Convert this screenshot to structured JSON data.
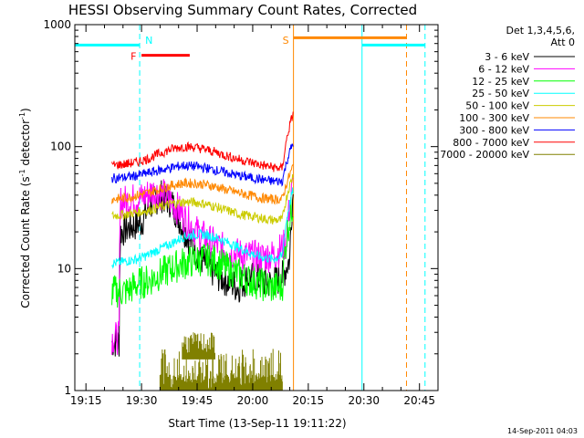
{
  "chart_data": {
    "type": "line",
    "title": "HESSI Observing Summary Count Rates, Corrected",
    "xlabel": "Start Time (13-Sep-11 19:11:22)",
    "ylabel_main": "Corrected Count Rate (s",
    "ylabel_sup1": "-1",
    "ylabel_mid": " detector",
    "ylabel_sup2": "-1",
    "ylabel_end": ")",
    "xaxis": {
      "unit": "minutes of day",
      "range": [
        1152,
        1250
      ],
      "ticks": [
        1155,
        1170,
        1185,
        1200,
        1215,
        1230,
        1245
      ],
      "tick_labels": [
        "19:15",
        "19:30",
        "19:45",
        "20:00",
        "20:15",
        "20:30",
        "20:45"
      ]
    },
    "yaxis": {
      "scale": "log",
      "range": [
        1,
        1000
      ],
      "ticks": [
        1,
        10,
        100,
        1000
      ],
      "tick_labels": [
        "1",
        "10",
        "100",
        "1000"
      ]
    },
    "legend": {
      "header1": "Det 1,3,4,5,6,",
      "header2": "Att 0",
      "placement": "right"
    },
    "series": [
      {
        "name": "3 - 6 keV",
        "color": "#000000",
        "points": [
          [
            1162,
            2.5
          ],
          [
            1164,
            2.5
          ],
          [
            1164.3,
            20
          ],
          [
            1170,
            24
          ],
          [
            1172,
            32
          ],
          [
            1175,
            40
          ],
          [
            1178,
            35
          ],
          [
            1181,
            22
          ],
          [
            1184,
            15
          ],
          [
            1187,
            11
          ],
          [
            1190,
            9
          ],
          [
            1193,
            8
          ],
          [
            1196,
            7
          ],
          [
            1199,
            8.5
          ],
          [
            1202,
            8
          ],
          [
            1205,
            7.5
          ],
          [
            1208,
            8.5
          ],
          [
            1210,
            12
          ],
          [
            1211,
            45
          ]
        ]
      },
      {
        "name": "6 - 12 keV",
        "color": "#ff00ff",
        "points": [
          [
            1162,
            2.7
          ],
          [
            1164,
            2.7
          ],
          [
            1164.3,
            35
          ],
          [
            1170,
            38
          ],
          [
            1173,
            43
          ],
          [
            1176,
            40
          ],
          [
            1179,
            33
          ],
          [
            1182,
            25
          ],
          [
            1185,
            20
          ],
          [
            1188,
            17
          ],
          [
            1191,
            15
          ],
          [
            1194,
            13.5
          ],
          [
            1197,
            13
          ],
          [
            1200,
            12.5
          ],
          [
            1203,
            12.5
          ],
          [
            1206,
            13
          ],
          [
            1209,
            16
          ],
          [
            1211,
            50
          ]
        ]
      },
      {
        "name": "12 - 25 keV",
        "color": "#00ff00",
        "points": [
          [
            1162,
            6.5
          ],
          [
            1166,
            6.5
          ],
          [
            1169,
            7.5
          ],
          [
            1172,
            8
          ],
          [
            1175,
            9
          ],
          [
            1178,
            10
          ],
          [
            1181,
            11
          ],
          [
            1184,
            11.5
          ],
          [
            1187,
            12
          ],
          [
            1190,
            11.5
          ],
          [
            1193,
            10
          ],
          [
            1196,
            9
          ],
          [
            1199,
            8
          ],
          [
            1202,
            7.5
          ],
          [
            1205,
            7
          ],
          [
            1208,
            7
          ],
          [
            1211,
            35
          ]
        ]
      },
      {
        "name": "25 - 50 keV",
        "color": "#00ffff",
        "points": [
          [
            1162,
            11
          ],
          [
            1166,
            11.5
          ],
          [
            1169,
            12
          ],
          [
            1172,
            13
          ],
          [
            1175,
            14.5
          ],
          [
            1178,
            16
          ],
          [
            1181,
            18
          ],
          [
            1184,
            19
          ],
          [
            1187,
            19
          ],
          [
            1190,
            18
          ],
          [
            1193,
            16.5
          ],
          [
            1196,
            15
          ],
          [
            1199,
            13.5
          ],
          [
            1202,
            12.5
          ],
          [
            1205,
            12
          ],
          [
            1208,
            12.5
          ],
          [
            1211,
            45
          ]
        ]
      },
      {
        "name": "50 - 100 keV",
        "color": "#cccc00",
        "points": [
          [
            1162,
            27
          ],
          [
            1166,
            28
          ],
          [
            1169,
            29
          ],
          [
            1172,
            30
          ],
          [
            1175,
            32
          ],
          [
            1178,
            34
          ],
          [
            1181,
            35
          ],
          [
            1184,
            35
          ],
          [
            1187,
            34
          ],
          [
            1190,
            32
          ],
          [
            1193,
            30
          ],
          [
            1196,
            28
          ],
          [
            1199,
            27
          ],
          [
            1202,
            26
          ],
          [
            1205,
            25
          ],
          [
            1208,
            25
          ],
          [
            1211,
            60
          ]
        ]
      },
      {
        "name": "100 - 300 keV",
        "color": "#ff8800",
        "points": [
          [
            1162,
            37
          ],
          [
            1166,
            38
          ],
          [
            1169,
            40
          ],
          [
            1172,
            42
          ],
          [
            1175,
            45
          ],
          [
            1178,
            48
          ],
          [
            1181,
            50
          ],
          [
            1184,
            50
          ],
          [
            1187,
            49
          ],
          [
            1190,
            47
          ],
          [
            1193,
            44
          ],
          [
            1196,
            42
          ],
          [
            1199,
            40
          ],
          [
            1202,
            38
          ],
          [
            1205,
            37
          ],
          [
            1208,
            37
          ],
          [
            1211,
            70
          ]
        ]
      },
      {
        "name": "300 - 800 keV",
        "color": "#0000ff",
        "points": [
          [
            1162,
            55
          ],
          [
            1166,
            56
          ],
          [
            1169,
            58
          ],
          [
            1172,
            61
          ],
          [
            1175,
            64
          ],
          [
            1178,
            67
          ],
          [
            1181,
            70
          ],
          [
            1184,
            69
          ],
          [
            1187,
            67
          ],
          [
            1190,
            64
          ],
          [
            1193,
            61
          ],
          [
            1196,
            58
          ],
          [
            1199,
            56
          ],
          [
            1202,
            54
          ],
          [
            1205,
            52
          ],
          [
            1208,
            52
          ],
          [
            1211,
            110
          ]
        ]
      },
      {
        "name": "800 - 7000 keV",
        "color": "#ff0000",
        "points": [
          [
            1162,
            70
          ],
          [
            1166,
            72
          ],
          [
            1169,
            75
          ],
          [
            1172,
            80
          ],
          [
            1175,
            88
          ],
          [
            1178,
            95
          ],
          [
            1181,
            100
          ],
          [
            1184,
            99
          ],
          [
            1187,
            95
          ],
          [
            1190,
            90
          ],
          [
            1193,
            84
          ],
          [
            1196,
            79
          ],
          [
            1199,
            75
          ],
          [
            1202,
            71
          ],
          [
            1205,
            68
          ],
          [
            1208,
            66
          ],
          [
            1211,
            190
          ]
        ]
      },
      {
        "name": "7000 - 20000 keV",
        "color": "#808000",
        "points": []
      }
    ],
    "markers": [
      {
        "label": "N",
        "color": "#00ffff",
        "x": 1169.5,
        "style": "dashed"
      },
      {
        "label": "S",
        "color": "#ff8800",
        "x": 1211,
        "style": "solid"
      },
      {
        "label": "",
        "color": "#00ffff",
        "x": 1229.5,
        "style": "solid"
      },
      {
        "label": "",
        "color": "#ff8800",
        "x": 1241.5,
        "style": "dashed"
      },
      {
        "label": "",
        "color": "#00ffff",
        "x": 1246.5,
        "style": "dashed"
      }
    ],
    "bars": [
      {
        "label": "",
        "color": "#00ffff",
        "x0": 1152,
        "x1": 1169.5,
        "y": 680
      },
      {
        "label": "F",
        "color": "#ff0000",
        "x0": 1170,
        "x1": 1183,
        "y": 560
      },
      {
        "label": "",
        "color": "#ff8800",
        "x0": 1211,
        "x1": 1241.5,
        "y": 780
      },
      {
        "label": "",
        "color": "#00ffff",
        "x0": 1229.5,
        "x1": 1246.5,
        "y": 680
      }
    ],
    "grid": false
  },
  "footer": {
    "timestamp": "14-Sep-2011 04:03"
  }
}
